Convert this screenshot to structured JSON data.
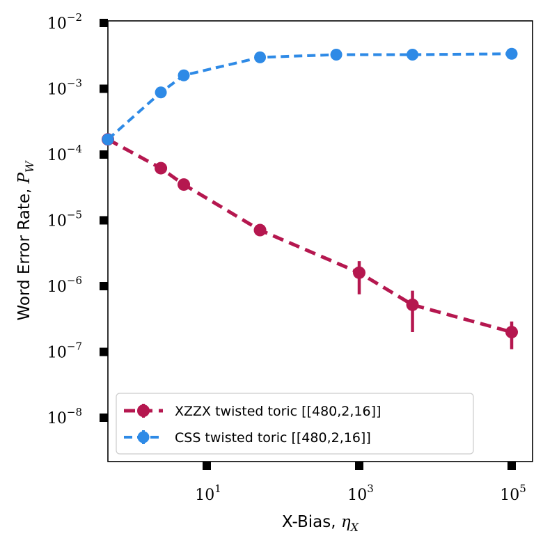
{
  "chart_data": {
    "type": "line",
    "title": "",
    "xlabel": "X-Bias, ",
    "xlabel_math": "η",
    "xlabel_math_sub": "X",
    "ylabel": "Word Error Rate, ",
    "ylabel_math": "P",
    "ylabel_math_sub": "W",
    "x_scale": "log",
    "y_scale": "log",
    "xlim": [
      0.5,
      200000
    ],
    "ylim": [
      2e-09,
      0.01
    ],
    "grid": false,
    "legend_position": "lower-left",
    "x_ticks": [
      {
        "value": 10,
        "base": "10",
        "exp": "1"
      },
      {
        "value": 1000,
        "base": "10",
        "exp": "3"
      },
      {
        "value": 100000,
        "base": "10",
        "exp": "5"
      }
    ],
    "y_ticks": [
      {
        "value": 0.01,
        "base": "10",
        "exp": "−2"
      },
      {
        "value": 0.001,
        "base": "10",
        "exp": "−3"
      },
      {
        "value": 0.0001,
        "base": "10",
        "exp": "−4"
      },
      {
        "value": 1e-05,
        "base": "10",
        "exp": "−5"
      },
      {
        "value": 1e-06,
        "base": "10",
        "exp": "−6"
      },
      {
        "value": 1e-07,
        "base": "10",
        "exp": "−7"
      },
      {
        "value": 1e-08,
        "base": "10",
        "exp": "−8"
      }
    ],
    "series": [
      {
        "name": "XZZX twisted toric [[480,2,16]]",
        "color": "#b5174f",
        "line_style": "dashed",
        "points": [
          {
            "x": 0.5,
            "y": 0.00017,
            "lo": 0.00017,
            "hi": 0.00017
          },
          {
            "x": 2.5,
            "y": 6.2e-05,
            "lo": 6.2e-05,
            "hi": 6.2e-05
          },
          {
            "x": 5,
            "y": 3.5e-05,
            "lo": 3.5e-05,
            "hi": 3.5e-05
          },
          {
            "x": 50,
            "y": 7.1e-06,
            "lo": 5.9e-06,
            "hi": 8.5e-06
          },
          {
            "x": 1000,
            "y": 1.6e-06,
            "lo": 7.5e-07,
            "hi": 2.4e-06
          },
          {
            "x": 5000,
            "y": 5.2e-07,
            "lo": 2e-07,
            "hi": 8.5e-07
          },
          {
            "x": 100000,
            "y": 2e-07,
            "lo": 1.1e-07,
            "hi": 2.9e-07
          }
        ]
      },
      {
        "name": "CSS twisted toric [[480,2,16]]",
        "color": "#2e8ae6",
        "line_style": "dashed",
        "points": [
          {
            "x": 0.5,
            "y": 0.00017,
            "lo": 0.00017,
            "hi": 0.00017
          },
          {
            "x": 2.5,
            "y": 0.00088,
            "lo": 0.00088,
            "hi": 0.00088
          },
          {
            "x": 5,
            "y": 0.0016,
            "lo": 0.0016,
            "hi": 0.0016
          },
          {
            "x": 50,
            "y": 0.003,
            "lo": 0.003,
            "hi": 0.003
          },
          {
            "x": 500,
            "y": 0.0033,
            "lo": 0.0033,
            "hi": 0.0033
          },
          {
            "x": 5000,
            "y": 0.0033,
            "lo": 0.0033,
            "hi": 0.0033
          },
          {
            "x": 100000,
            "y": 0.0034,
            "lo": 0.0034,
            "hi": 0.0034
          }
        ]
      }
    ]
  }
}
